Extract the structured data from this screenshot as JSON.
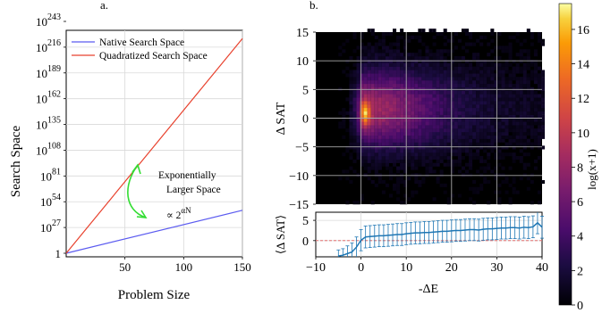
{
  "panels": {
    "a_label": "a.",
    "b_label": "b."
  },
  "colors": {
    "native": "#5b5bf0",
    "quadratized": "#e8412d",
    "annotation_arrow": "#33dd33",
    "errorbar": "#1f77b4",
    "zero_line": "#e05a5a"
  },
  "chart_data": [
    {
      "type": "line",
      "panel": "a",
      "xlabel": "Problem Size",
      "ylabel": "Search Space",
      "xlim": [
        0,
        150
      ],
      "x_ticks": [
        50,
        100,
        150
      ],
      "y_tick_labels": [
        {
          "label": "1",
          "exponent": ""
        },
        {
          "label": "10",
          "exponent": "27"
        },
        {
          "label": "10",
          "exponent": "54"
        },
        {
          "label": "10",
          "exponent": "81"
        },
        {
          "label": "10",
          "exponent": "108"
        },
        {
          "label": "10",
          "exponent": "135"
        },
        {
          "label": "10",
          "exponent": "162"
        },
        {
          "label": "10",
          "exponent": "189"
        },
        {
          "label": "10",
          "exponent": "216"
        },
        {
          "label": "10",
          "exponent": "243"
        }
      ],
      "ylim_log10": [
        0,
        243
      ],
      "series": [
        {
          "name": "Native Search Space",
          "x": [
            0,
            150
          ],
          "y_log10": [
            0,
            45
          ]
        },
        {
          "name": "Quadratized Search Space",
          "x": [
            0,
            150
          ],
          "y_log10": [
            0,
            225
          ]
        }
      ],
      "annotation": {
        "text_lines": [
          "Exponentially",
          "Larger Space"
        ],
        "formula_base": "∝ 2",
        "formula_exp": "αN"
      },
      "grid": true,
      "legend": "top-left"
    },
    {
      "type": "heatmap",
      "panel": "b-top",
      "ylabel": "Δ SAT",
      "xlim": [
        -10,
        40
      ],
      "ylim": [
        -15,
        15
      ],
      "x_ticks": [
        -10,
        0,
        10,
        20,
        30,
        40
      ],
      "y_ticks": [
        -15,
        -10,
        -5,
        0,
        5,
        10,
        15
      ],
      "colorbar": {
        "label": "log(x+1)",
        "range": [
          0,
          17.5
        ],
        "ticks": [
          0,
          2,
          4,
          6,
          8,
          10,
          12,
          14,
          16
        ]
      },
      "peak": {
        "x": 0,
        "y": 0.5,
        "value": 17.5
      },
      "grid": true
    },
    {
      "type": "line",
      "panel": "b-bottom",
      "xlabel": "-ΔE",
      "ylabel": "⟨Δ SAT⟩",
      "xlim": [
        -10,
        40
      ],
      "ylim": [
        -4,
        7
      ],
      "y_ticks": [
        0,
        5
      ],
      "x_ticks": [
        -10,
        0,
        10,
        20,
        30,
        40
      ],
      "x": [
        -5,
        -4,
        -3,
        -2,
        -1,
        0,
        1,
        2,
        3,
        4,
        5,
        6,
        7,
        8,
        9,
        10,
        11,
        12,
        13,
        14,
        15,
        16,
        17,
        18,
        19,
        20,
        21,
        22,
        23,
        24,
        25,
        26,
        27,
        28,
        29,
        30,
        31,
        32,
        33,
        34,
        35,
        36,
        37,
        38,
        39,
        40
      ],
      "mean": [
        -3.8,
        -3.6,
        -3.2,
        -2.8,
        -1.6,
        0.1,
        0.9,
        1.0,
        1.1,
        1.2,
        1.2,
        1.3,
        1.4,
        1.5,
        1.5,
        1.7,
        1.8,
        1.9,
        1.9,
        2.0,
        2.0,
        2.1,
        2.2,
        2.3,
        2.3,
        2.4,
        2.5,
        2.5,
        2.6,
        2.7,
        2.7,
        2.6,
        2.8,
        2.9,
        2.9,
        3.0,
        3.1,
        3.1,
        3.2,
        3.2,
        3.1,
        3.3,
        3.2,
        3.4,
        4.4,
        3.3
      ],
      "err": [
        1.5,
        1.6,
        1.9,
        2.2,
        2.5,
        2.6,
        2.7,
        2.7,
        2.7,
        2.7,
        2.7,
        2.7,
        2.7,
        2.7,
        2.7,
        2.7,
        2.7,
        2.7,
        2.7,
        2.7,
        2.7,
        2.7,
        2.7,
        2.7,
        2.7,
        2.7,
        2.7,
        2.7,
        2.7,
        2.7,
        2.7,
        2.7,
        2.7,
        2.7,
        2.7,
        2.7,
        2.7,
        2.7,
        2.7,
        2.7,
        2.7,
        2.7,
        2.7,
        2.7,
        2.7,
        2.7
      ],
      "reference_line_y": 0,
      "grid": true
    }
  ]
}
